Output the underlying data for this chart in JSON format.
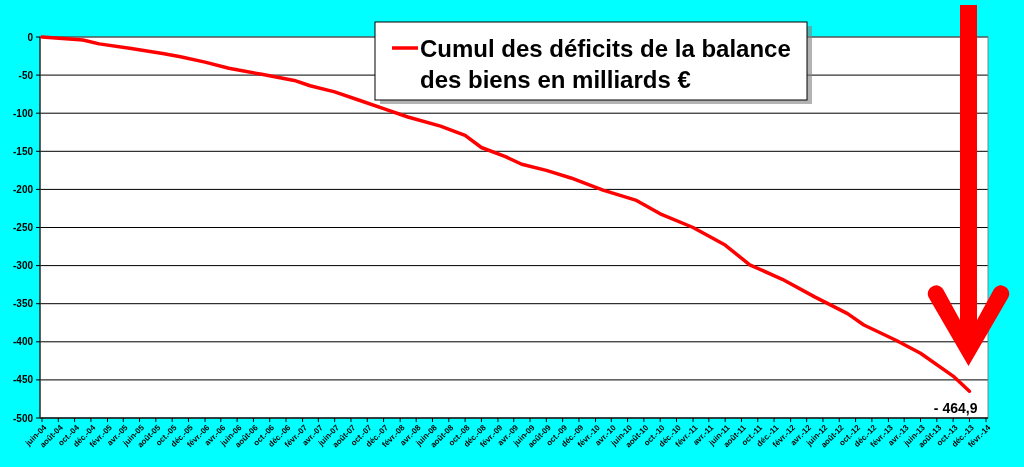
{
  "chart_data": {
    "type": "line",
    "series": [
      {
        "name": "Cumul des déficits de la balance des biens en milliards €",
        "color": "#ff0000",
        "x": [
          "2004-06",
          "2004-11",
          "2005-01",
          "2005-05",
          "2005-09",
          "2005-11",
          "2006-02",
          "2006-05",
          "2006-09",
          "2007-01",
          "2007-03",
          "2007-06",
          "2007-09",
          "2007-12",
          "2008-03",
          "2008-07",
          "2008-10",
          "2008-12",
          "2009-03",
          "2009-05",
          "2009-08",
          "2009-11",
          "2010-03",
          "2010-07",
          "2010-10",
          "2011-02",
          "2011-06",
          "2011-09",
          "2012-01",
          "2012-05",
          "2012-09",
          "2012-11",
          "2013-03",
          "2013-06",
          "2013-10",
          "2013-12"
        ],
        "values": [
          0,
          -4,
          -9,
          -15,
          -22,
          -26,
          -33,
          -41,
          -49,
          -57,
          -64,
          -72,
          -83,
          -94,
          -105,
          -117,
          -129,
          -145,
          -157,
          -167,
          -175,
          -185,
          -201,
          -214,
          -232,
          -250,
          -273,
          -299,
          -318,
          -341,
          -363,
          -378,
          -398,
          -415,
          -445,
          -464.9
        ]
      }
    ],
    "xlim": [
      "2004-06",
      "2014-02"
    ],
    "xticks": [
      {
        "value": "2004-06",
        "label": "juin-04"
      },
      {
        "value": "2004-08",
        "label": "août-04"
      },
      {
        "value": "2004-10",
        "label": "oct.-04"
      },
      {
        "value": "2004-12",
        "label": "déc.-04"
      },
      {
        "value": "2005-02",
        "label": "févr.-05"
      },
      {
        "value": "2005-04",
        "label": "avr.-05"
      },
      {
        "value": "2005-06",
        "label": "juin-05"
      },
      {
        "value": "2005-08",
        "label": "août-05"
      },
      {
        "value": "2005-10",
        "label": "oct.-05"
      },
      {
        "value": "2005-12",
        "label": "déc.-05"
      },
      {
        "value": "2006-02",
        "label": "févr.-06"
      },
      {
        "value": "2006-04",
        "label": "avr.-06"
      },
      {
        "value": "2006-06",
        "label": "juin-06"
      },
      {
        "value": "2006-08",
        "label": "août-06"
      },
      {
        "value": "2006-10",
        "label": "oct.-06"
      },
      {
        "value": "2006-12",
        "label": "déc.-06"
      },
      {
        "value": "2007-02",
        "label": "févr.-07"
      },
      {
        "value": "2007-04",
        "label": "avr.-07"
      },
      {
        "value": "2007-06",
        "label": "juin-07"
      },
      {
        "value": "2007-08",
        "label": "août-07"
      },
      {
        "value": "2007-10",
        "label": "oct.-07"
      },
      {
        "value": "2007-12",
        "label": "déc.-07"
      },
      {
        "value": "2008-02",
        "label": "févr.-08"
      },
      {
        "value": "2008-04",
        "label": "avr.-08"
      },
      {
        "value": "2008-06",
        "label": "juin-08"
      },
      {
        "value": "2008-08",
        "label": "août-08"
      },
      {
        "value": "2008-10",
        "label": "oct.-08"
      },
      {
        "value": "2008-12",
        "label": "déc.-08"
      },
      {
        "value": "2009-02",
        "label": "févr.-09"
      },
      {
        "value": "2009-04",
        "label": "avr.-09"
      },
      {
        "value": "2009-06",
        "label": "juin-09"
      },
      {
        "value": "2009-08",
        "label": "août-09"
      },
      {
        "value": "2009-10",
        "label": "oct.-09"
      },
      {
        "value": "2009-12",
        "label": "déc.-09"
      },
      {
        "value": "2010-02",
        "label": "févr.-10"
      },
      {
        "value": "2010-04",
        "label": "avr.-10"
      },
      {
        "value": "2010-06",
        "label": "juin-10"
      },
      {
        "value": "2010-08",
        "label": "août-10"
      },
      {
        "value": "2010-10",
        "label": "oct.-10"
      },
      {
        "value": "2010-12",
        "label": "déc.-10"
      },
      {
        "value": "2011-02",
        "label": "févr.-11"
      },
      {
        "value": "2011-04",
        "label": "avr.-11"
      },
      {
        "value": "2011-06",
        "label": "juin-11"
      },
      {
        "value": "2011-08",
        "label": "août-11"
      },
      {
        "value": "2011-10",
        "label": "oct.-11"
      },
      {
        "value": "2011-12",
        "label": "déc.-11"
      },
      {
        "value": "2012-02",
        "label": "févr.-12"
      },
      {
        "value": "2012-04",
        "label": "avr.-12"
      },
      {
        "value": "2012-06",
        "label": "juin-12"
      },
      {
        "value": "2012-08",
        "label": "août-12"
      },
      {
        "value": "2012-10",
        "label": "oct.-12"
      },
      {
        "value": "2012-12",
        "label": "déc.-12"
      },
      {
        "value": "2013-02",
        "label": "févr.-13"
      },
      {
        "value": "2013-04",
        "label": "avr.-13"
      },
      {
        "value": "2013-06",
        "label": "juin-13"
      },
      {
        "value": "2013-08",
        "label": "août-13"
      },
      {
        "value": "2013-10",
        "label": "oct.-13"
      },
      {
        "value": "2013-12",
        "label": "déc.-13"
      },
      {
        "value": "2014-02",
        "label": "févr.-14"
      }
    ],
    "ylim": [
      -500,
      0
    ],
    "yticks": [
      0,
      -50,
      -100,
      -150,
      -200,
      -250,
      -300,
      -350,
      -400,
      -450,
      -500
    ],
    "grid": "y",
    "legend": "top",
    "marker": "none",
    "line_style": "solid",
    "annotations": [
      {
        "text": "- 464,9",
        "x": "2013-12",
        "y": -464.9
      }
    ]
  }
}
